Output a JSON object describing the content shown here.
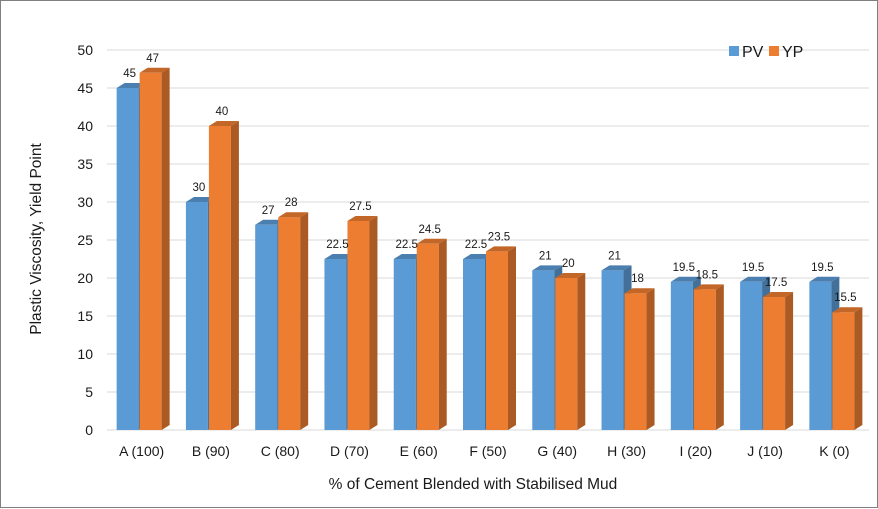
{
  "chart_data": {
    "type": "bar",
    "title": "",
    "xlabel": "% of Cement Blended with Stabilised Mud",
    "ylabel": "Plastic Viscosity, Yield Point",
    "ylim": [
      0,
      50
    ],
    "yticks": [
      "0",
      "5",
      "10",
      "15",
      "20",
      "25",
      "30",
      "35",
      "40",
      "45",
      "50"
    ],
    "grid": true,
    "legend": "top-right",
    "categories": [
      "A (100)",
      "B (90)",
      "C (80)",
      "D (70)",
      "E (60)",
      "F (50)",
      "G (40)",
      "H (30)",
      "I (20)",
      "J (10)",
      "K (0)"
    ],
    "series": [
      {
        "name": "PV",
        "color": "#5b9bd5",
        "values": [
          45,
          30,
          27,
          22.5,
          22.5,
          22.5,
          21,
          21,
          19.5,
          19.5,
          19.5
        ],
        "labels": [
          "45",
          "30",
          "27",
          "22.5",
          "22.5",
          "22.5",
          "21",
          "21",
          "19.5",
          "19.5",
          "19.5"
        ]
      },
      {
        "name": "YP",
        "color": "#ed7d31",
        "values": [
          47,
          40,
          28,
          27.5,
          24.5,
          23.5,
          20,
          18,
          18.5,
          17.5,
          15.5
        ],
        "labels": [
          "47",
          "40",
          "28",
          "27.5",
          "24.5",
          "23.5",
          "20",
          "18",
          "18.5",
          "17.5",
          "15.5"
        ]
      }
    ]
  }
}
